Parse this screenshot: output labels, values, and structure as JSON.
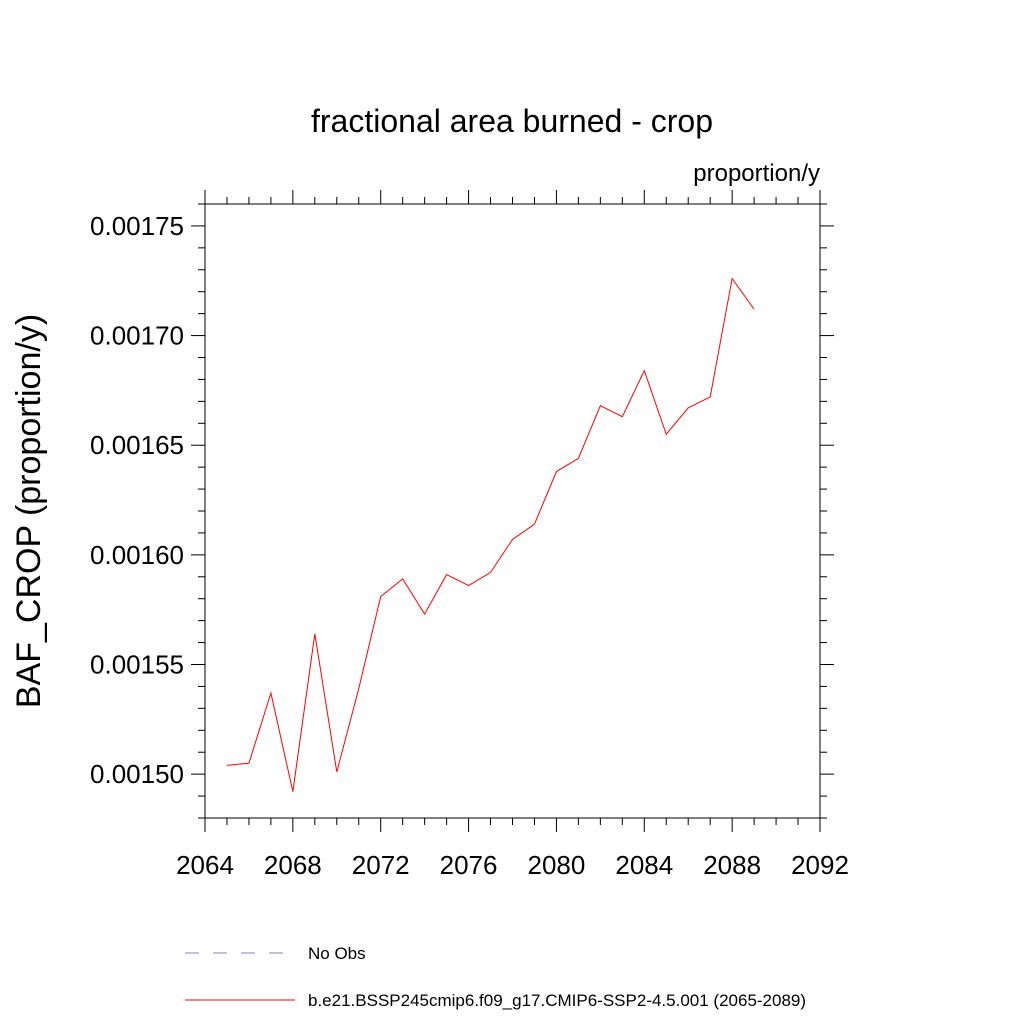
{
  "chart_data": {
    "type": "line",
    "title": "fractional area burned - crop",
    "units": "proportion/y",
    "ylabel": "BAF_CROP  (proportion/y)",
    "xlabel": "",
    "xlim": [
      2064,
      2092
    ],
    "ylim": [
      0.00148,
      0.00176
    ],
    "xticks": [
      "2064",
      "2068",
      "2072",
      "2076",
      "2080",
      "2084",
      "2088",
      "2092"
    ],
    "yticks": [
      "0.00150",
      "0.00155",
      "0.00160",
      "0.00165",
      "0.00170",
      "0.00175"
    ],
    "series": [
      {
        "name": "b.e21.BSSP245cmip6.f09_g17.CMIP6-SSP2-4.5.001 (2065-2089)",
        "color": "#ff0000",
        "x": [
          2065,
          2066,
          2067,
          2068,
          2069,
          2070,
          2071,
          2072,
          2073,
          2074,
          2075,
          2076,
          2077,
          2078,
          2079,
          2080,
          2081,
          2082,
          2083,
          2084,
          2085,
          2086,
          2087,
          2088,
          2089
        ],
        "y": [
          0.001504,
          0.001505,
          0.001537,
          0.001492,
          0.001564,
          0.001501,
          0.001539,
          0.001581,
          0.001589,
          0.001573,
          0.001591,
          0.001586,
          0.001592,
          0.001607,
          0.001614,
          0.001638,
          0.001644,
          0.001668,
          0.001663,
          0.001684,
          0.001655,
          0.001667,
          0.001672,
          0.001726,
          0.001712
        ]
      }
    ],
    "legend": [
      {
        "label": "No Obs",
        "color": "#8080c0",
        "style": "dashed"
      },
      {
        "label": "b.e21.BSSP245cmip6.f09_g17.CMIP6-SSP2-4.5.001 (2065-2089)",
        "color": "#ff0000",
        "style": "solid"
      }
    ]
  }
}
